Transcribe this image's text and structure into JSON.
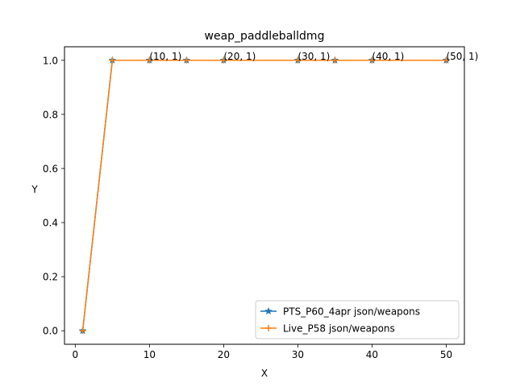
{
  "chart_data": {
    "type": "line",
    "title": "weap_paddleballdmg",
    "xlabel": "X",
    "ylabel": "Y",
    "xlim": [
      -1.45,
      52.45
    ],
    "ylim": [
      -0.05,
      1.05
    ],
    "xticks": [
      0,
      10,
      20,
      30,
      40,
      50
    ],
    "xtick_labels": [
      "0",
      "10",
      "20",
      "30",
      "40",
      "50"
    ],
    "yticks": [
      0.0,
      0.2,
      0.4,
      0.6,
      0.8,
      1.0
    ],
    "ytick_labels": [
      "0.0",
      "0.2",
      "0.4",
      "0.6",
      "0.8",
      "1.0"
    ],
    "grid": false,
    "legend_position": "lower-right",
    "series": [
      {
        "name": "PTS_P60_4apr json/weapons",
        "color": "#1f77b4",
        "marker": "star",
        "x": [
          1,
          5,
          10,
          15,
          20,
          30,
          35,
          40,
          50
        ],
        "y": [
          0,
          1,
          1,
          1,
          1,
          1,
          1,
          1,
          1
        ]
      },
      {
        "name": "Live_P58 json/weapons",
        "color": "#ff7f0e",
        "marker": "plus",
        "x": [
          1,
          5,
          10,
          15,
          20,
          30,
          35,
          40,
          50
        ],
        "y": [
          0,
          1,
          1,
          1,
          1,
          1,
          1,
          1,
          1
        ]
      }
    ],
    "annotations": [
      {
        "text": "(10, 1)",
        "x": 10,
        "y": 1
      },
      {
        "text": "(20, 1)",
        "x": 20,
        "y": 1
      },
      {
        "text": "(30, 1)",
        "x": 30,
        "y": 1
      },
      {
        "text": "(40, 1)",
        "x": 40,
        "y": 1
      },
      {
        "text": "(50, 1)",
        "x": 50,
        "y": 1
      }
    ]
  }
}
